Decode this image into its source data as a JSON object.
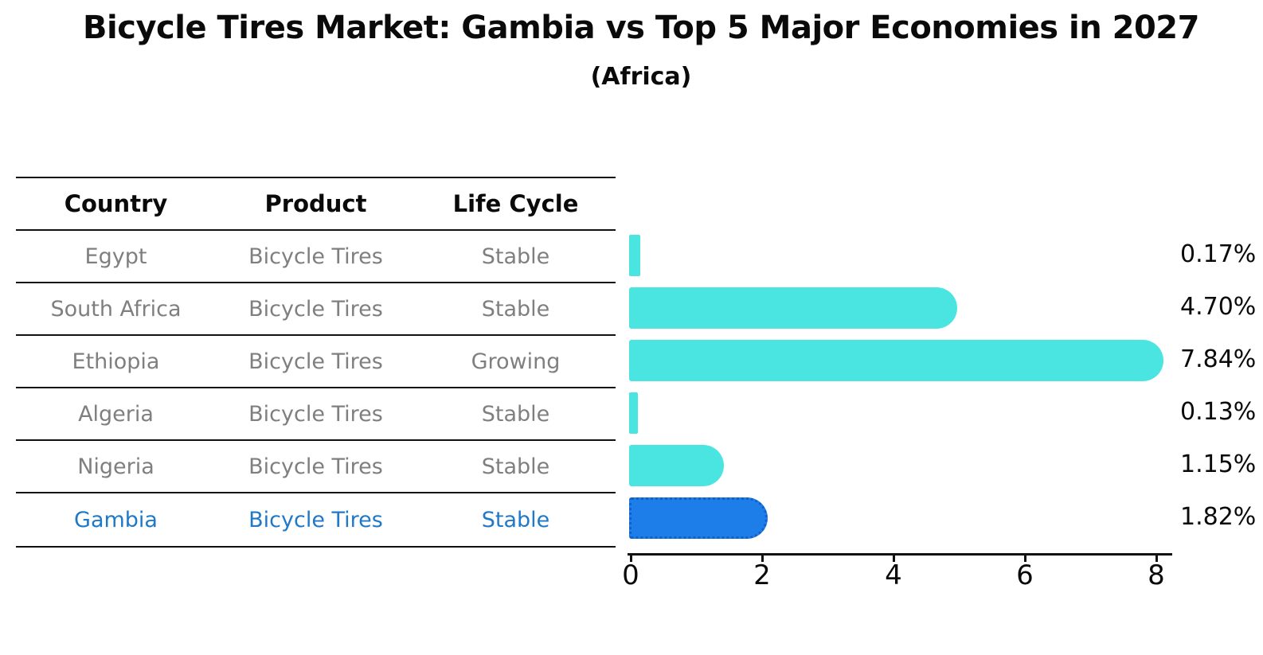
{
  "title": "Bicycle Tires Market: Gambia vs Top 5 Major Economies in 2027",
  "subtitle": "(Africa)",
  "table": {
    "headers": [
      "Country",
      "Product",
      "Life Cycle"
    ],
    "rows": [
      {
        "country": "Egypt",
        "product": "Bicycle Tires",
        "life_cycle": "Stable",
        "highlighted": false
      },
      {
        "country": "South Africa",
        "product": "Bicycle Tires",
        "life_cycle": "Stable",
        "highlighted": false
      },
      {
        "country": "Ethiopia",
        "product": "Bicycle Tires",
        "life_cycle": "Growing",
        "highlighted": false
      },
      {
        "country": "Algeria",
        "product": "Bicycle Tires",
        "life_cycle": "Stable",
        "highlighted": false
      },
      {
        "country": "Nigeria",
        "product": "Bicycle Tires",
        "life_cycle": "Stable",
        "highlighted": false
      },
      {
        "country": "Gambia",
        "product": "Bicycle Tires",
        "life_cycle": "Stable",
        "highlighted": true
      }
    ]
  },
  "chart_data": {
    "type": "bar",
    "orientation": "horizontal",
    "categories": [
      "Egypt",
      "South Africa",
      "Ethiopia",
      "Algeria",
      "Nigeria",
      "Gambia"
    ],
    "values": [
      0.17,
      4.7,
      7.84,
      0.13,
      1.15,
      1.82
    ],
    "value_labels": [
      "0.17%",
      "4.70%",
      "7.84%",
      "0.13%",
      "1.15%",
      "1.82%"
    ],
    "x_ticks": [
      0,
      2,
      4,
      6,
      8
    ],
    "xlim": [
      0,
      8.3
    ],
    "grid": false,
    "legend": "none",
    "bar_color": "#4ae5e1",
    "highlight_color": "#1e7ee9",
    "highlight_border_color": "#1360c6",
    "highlight_index": 5,
    "highlight_text_color": "#1f78c8"
  }
}
